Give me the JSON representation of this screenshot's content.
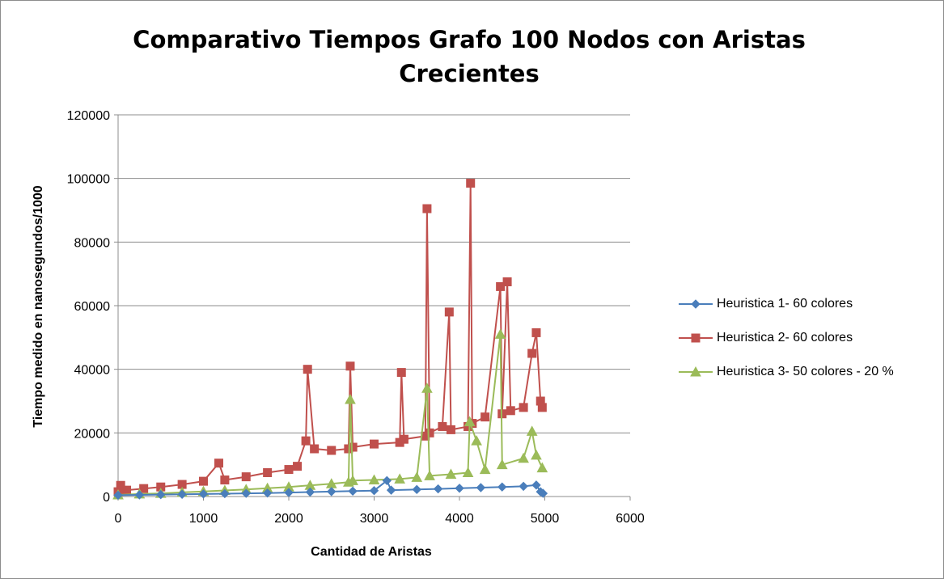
{
  "chart_data": {
    "type": "line",
    "title_lines": [
      "Comparativo Tiempos Grafo 100 Nodos con Aristas",
      "Crecientes"
    ],
    "xlabel": "Cantidad de Aristas",
    "ylabel": "Tiempo medido en nanosegundos/1000",
    "xlim": [
      0,
      6000
    ],
    "ylim": [
      0,
      120000
    ],
    "x_ticks": [
      "0",
      "1000",
      "2000",
      "3000",
      "4000",
      "5000",
      "6000"
    ],
    "y_ticks": [
      "0",
      "20000",
      "40000",
      "60000",
      "80000",
      "100000",
      "120000"
    ],
    "grid": "horizontal",
    "legend_position": "right",
    "series": [
      {
        "name": "Heuristica 1- 60 colores",
        "color": "#4a7ebb",
        "marker": "diamond",
        "points": [
          [
            0,
            400
          ],
          [
            250,
            500
          ],
          [
            500,
            600
          ],
          [
            750,
            700
          ],
          [
            1000,
            800
          ],
          [
            1250,
            900
          ],
          [
            1500,
            1000
          ],
          [
            1750,
            1100
          ],
          [
            2000,
            1250
          ],
          [
            2250,
            1400
          ],
          [
            2500,
            1550
          ],
          [
            2750,
            1700
          ],
          [
            3000,
            1850
          ],
          [
            3150,
            5000
          ],
          [
            3200,
            2000
          ],
          [
            3500,
            2200
          ],
          [
            3750,
            2400
          ],
          [
            4000,
            2600
          ],
          [
            4250,
            2800
          ],
          [
            4500,
            3000
          ],
          [
            4750,
            3200
          ],
          [
            4900,
            3600
          ],
          [
            4950,
            1500
          ],
          [
            4980,
            1000
          ]
        ]
      },
      {
        "name": "Heuristica 2- 60 colores",
        "color": "#c0504d",
        "marker": "square",
        "points": [
          [
            0,
            1500
          ],
          [
            30,
            3500
          ],
          [
            100,
            2000
          ],
          [
            300,
            2500
          ],
          [
            500,
            3000
          ],
          [
            750,
            3800
          ],
          [
            1000,
            4800
          ],
          [
            1180,
            10500
          ],
          [
            1250,
            5200
          ],
          [
            1500,
            6200
          ],
          [
            1750,
            7500
          ],
          [
            2000,
            8500
          ],
          [
            2100,
            9500
          ],
          [
            2200,
            17500
          ],
          [
            2220,
            40000
          ],
          [
            2300,
            15000
          ],
          [
            2500,
            14500
          ],
          [
            2700,
            15000
          ],
          [
            2720,
            41000
          ],
          [
            2750,
            15500
          ],
          [
            3000,
            16500
          ],
          [
            3300,
            17000
          ],
          [
            3320,
            39000
          ],
          [
            3350,
            18000
          ],
          [
            3600,
            19000
          ],
          [
            3620,
            90500
          ],
          [
            3650,
            20000
          ],
          [
            3800,
            22000
          ],
          [
            3880,
            58000
          ],
          [
            3900,
            21000
          ],
          [
            4100,
            22000
          ],
          [
            4130,
            98500
          ],
          [
            4150,
            23000
          ],
          [
            4300,
            25000
          ],
          [
            4480,
            66000
          ],
          [
            4500,
            26000
          ],
          [
            4560,
            67500
          ],
          [
            4600,
            27000
          ],
          [
            4750,
            28000
          ],
          [
            4850,
            45000
          ],
          [
            4900,
            51500
          ],
          [
            4950,
            30000
          ],
          [
            4970,
            28000
          ]
        ]
      },
      {
        "name": "Heuristica 3- 50 colores - 20 %",
        "color": "#9bbb59",
        "marker": "triangle",
        "points": [
          [
            0,
            500
          ],
          [
            250,
            800
          ],
          [
            500,
            1000
          ],
          [
            750,
            1300
          ],
          [
            1000,
            1600
          ],
          [
            1250,
            1900
          ],
          [
            1500,
            2200
          ],
          [
            1750,
            2600
          ],
          [
            2000,
            3000
          ],
          [
            2250,
            3500
          ],
          [
            2500,
            4000
          ],
          [
            2700,
            4500
          ],
          [
            2720,
            30500
          ],
          [
            2750,
            5000
          ],
          [
            3000,
            5200
          ],
          [
            3300,
            5500
          ],
          [
            3500,
            6000
          ],
          [
            3620,
            34000
          ],
          [
            3650,
            6500
          ],
          [
            3900,
            7000
          ],
          [
            4100,
            7500
          ],
          [
            4120,
            23500
          ],
          [
            4200,
            17500
          ],
          [
            4300,
            8500
          ],
          [
            4480,
            51000
          ],
          [
            4500,
            10000
          ],
          [
            4750,
            12000
          ],
          [
            4850,
            20500
          ],
          [
            4900,
            13000
          ],
          [
            4970,
            9000
          ]
        ]
      }
    ]
  }
}
